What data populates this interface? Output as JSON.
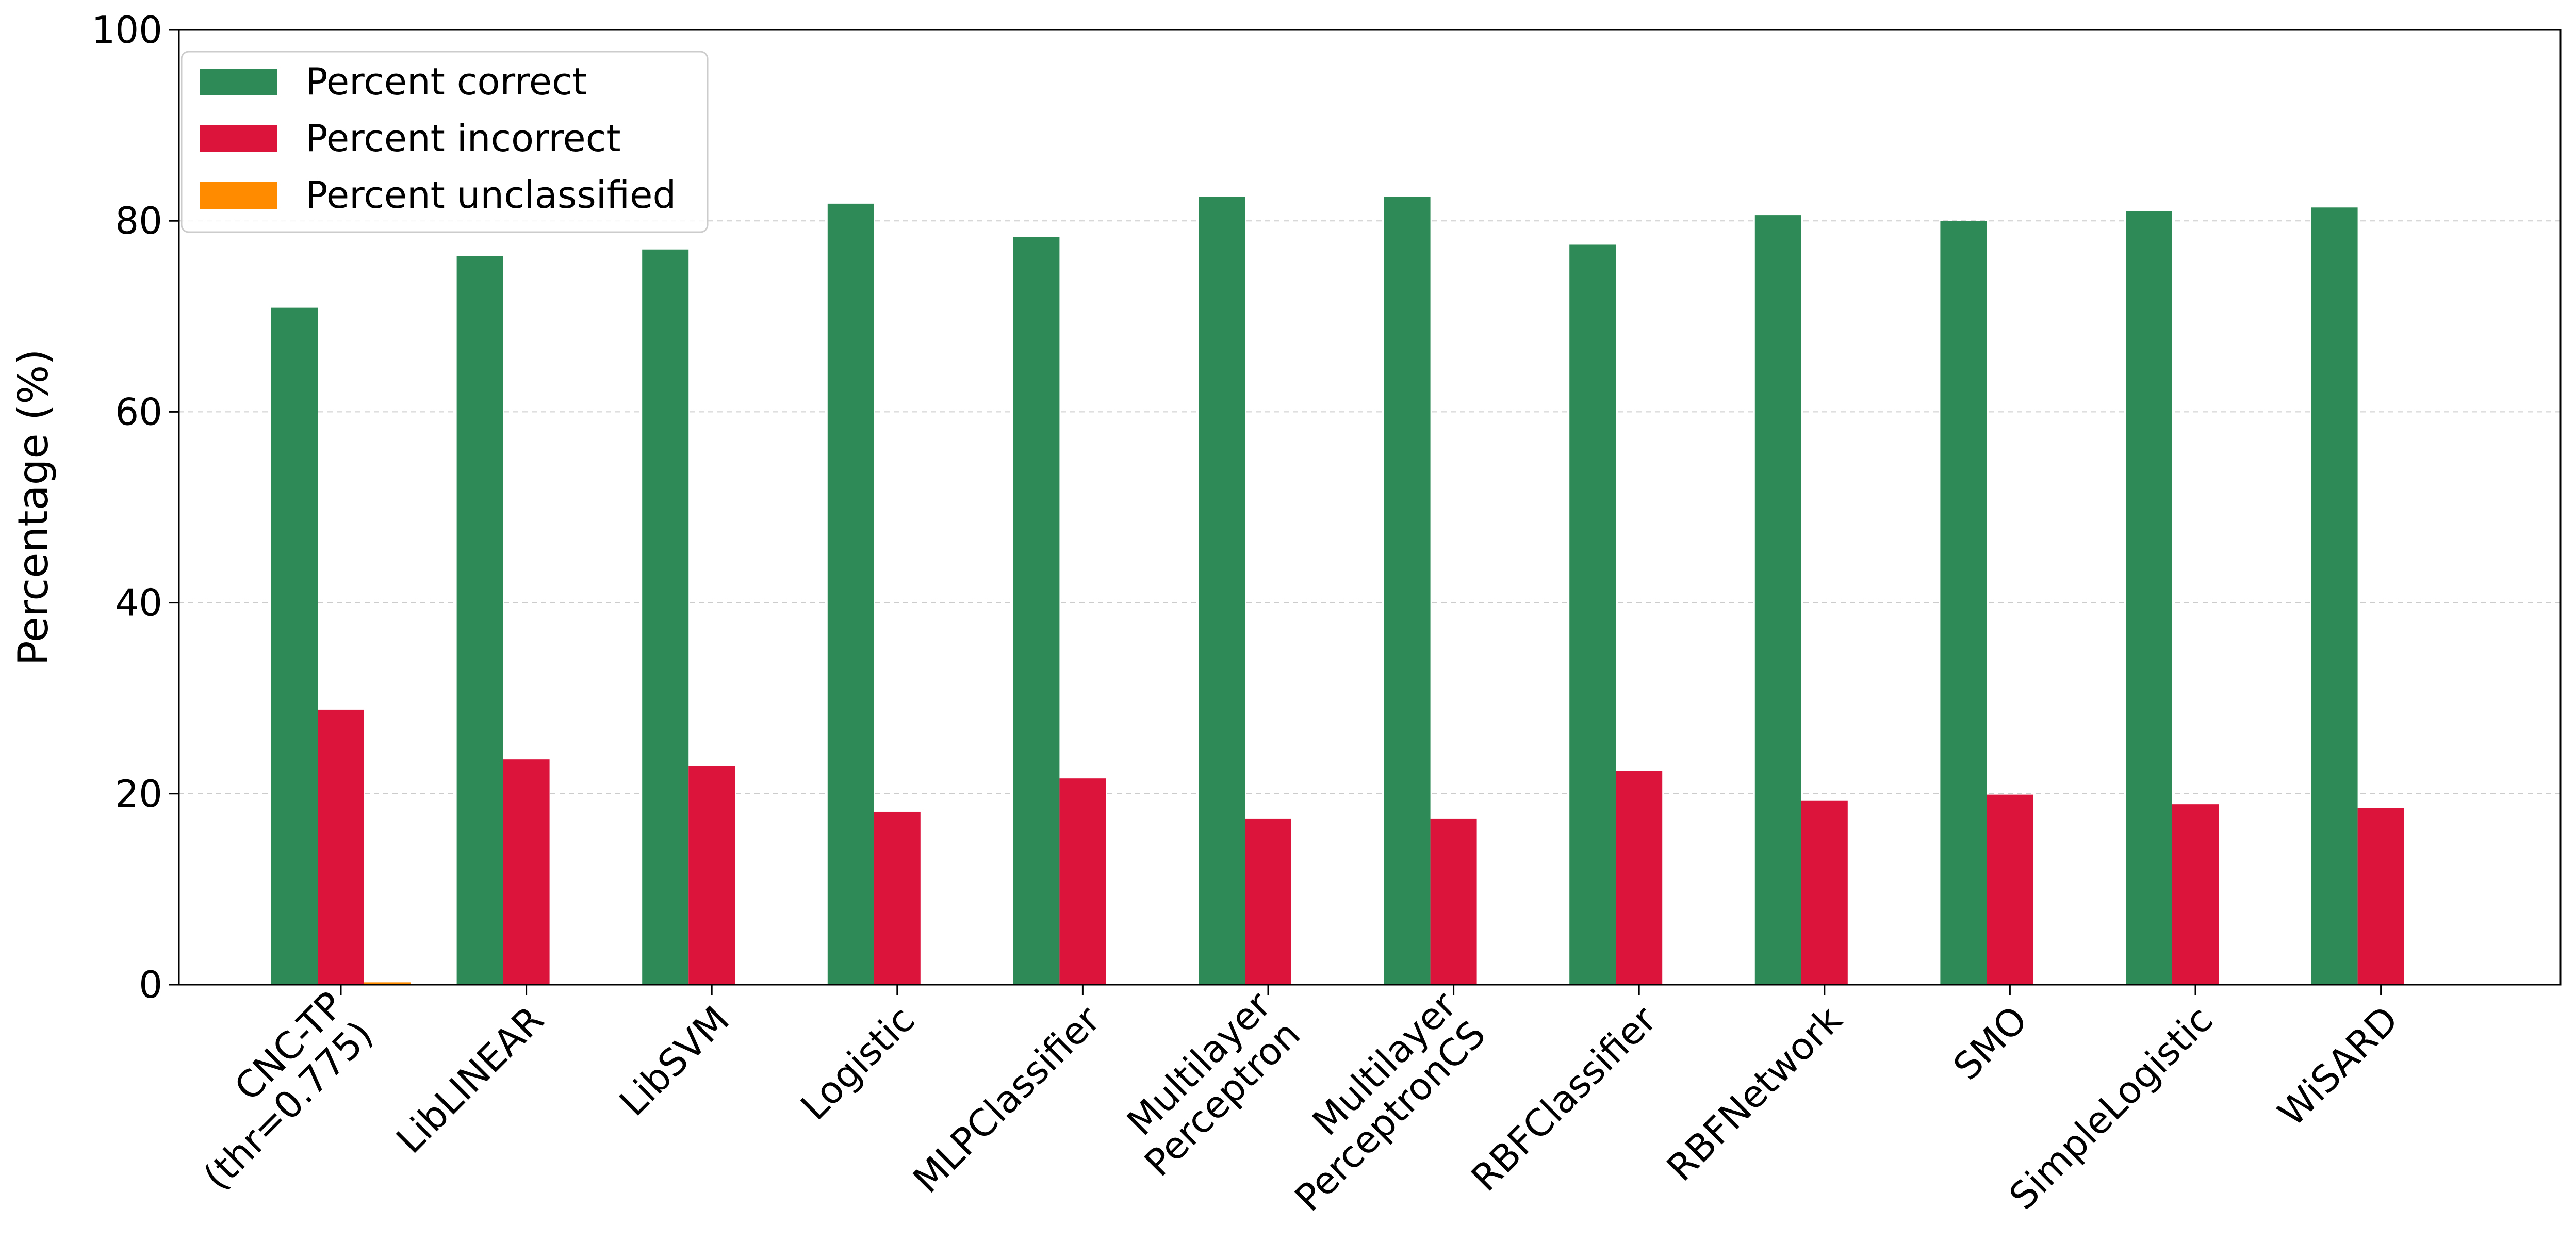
{
  "chart_data": {
    "type": "bar",
    "title": "",
    "xlabel": "",
    "ylabel": "Percentage (%)",
    "ylim": [
      0,
      100
    ],
    "yticks": [
      0,
      20,
      40,
      60,
      80,
      100
    ],
    "grid": "y-dashed",
    "legend_position": "top-left",
    "categories": [
      "CNC-TP\n(thr=0.775)",
      "LibLINEAR",
      "LibSVM",
      "Logistic",
      "MLPClassifier",
      "Multilayer\nPerceptron",
      "Multilayer\nPerceptronCS",
      "RBFClassifier",
      "RBFNetwork",
      "SMO",
      "SimpleLogistic",
      "WiSARD"
    ],
    "series": [
      {
        "name": "Percent correct",
        "color": "#2e8b57",
        "values": [
          70.9,
          76.3,
          77.0,
          81.8,
          78.3,
          82.5,
          82.5,
          77.5,
          80.6,
          80.0,
          81.0,
          81.4
        ]
      },
      {
        "name": "Percent incorrect",
        "color": "#dc143c",
        "values": [
          28.8,
          23.6,
          22.9,
          18.1,
          21.6,
          17.4,
          17.4,
          22.4,
          19.3,
          19.9,
          18.9,
          18.5
        ]
      },
      {
        "name": "Percent unclassified",
        "color": "#ff8c00",
        "values": [
          0.25,
          0,
          0,
          0,
          0,
          0,
          0,
          0,
          0,
          0,
          0,
          0
        ]
      }
    ]
  }
}
